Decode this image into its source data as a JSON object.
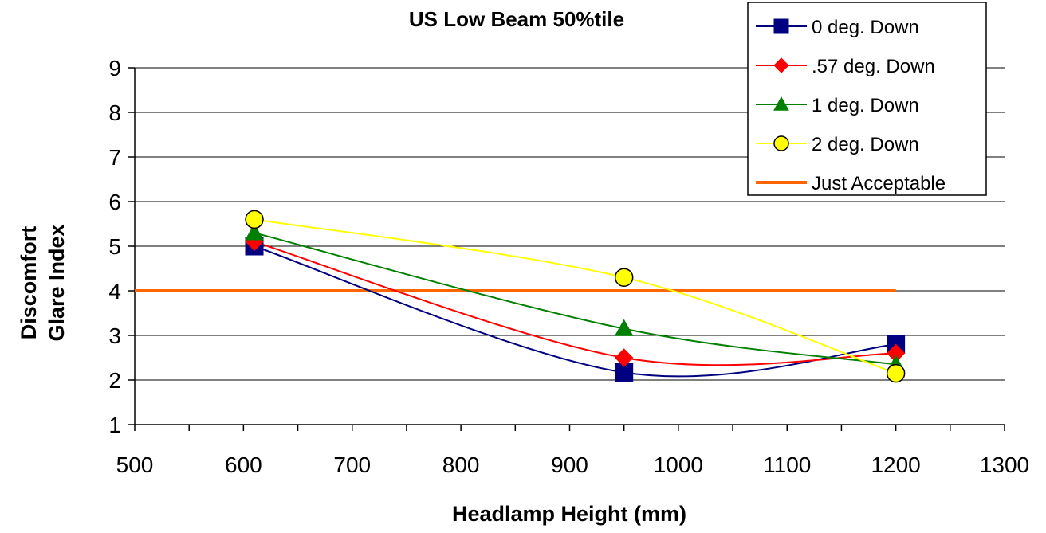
{
  "chart_data": {
    "type": "line",
    "title": "US Low Beam 50%tile",
    "xlabel": "Headlamp Height (mm)",
    "ylabel": [
      "Discomfort",
      "Glare Index"
    ],
    "xlim": [
      500,
      1300
    ],
    "ylim": [
      1,
      9
    ],
    "xticks": [
      500,
      600,
      700,
      800,
      900,
      1000,
      1100,
      1200,
      1300
    ],
    "yticks": [
      1,
      2,
      3,
      4,
      5,
      6,
      7,
      8,
      9
    ],
    "grid": "horizontal",
    "legend_position": "top-right",
    "series": [
      {
        "name": "0 deg. Down",
        "color": "#000080",
        "marker": "square",
        "x": [
          610,
          950,
          1200
        ],
        "y": [
          5.0,
          2.17,
          2.8
        ]
      },
      {
        "name": ".57 deg. Down",
        "color": "#ff0000",
        "marker": "diamond",
        "x": [
          610,
          950,
          1200
        ],
        "y": [
          5.1,
          2.5,
          2.6
        ]
      },
      {
        "name": "1 deg. Down",
        "color": "#008000",
        "marker": "triangle",
        "x": [
          610,
          950,
          1200
        ],
        "y": [
          5.3,
          3.15,
          2.35
        ]
      },
      {
        "name": "2 deg. Down",
        "color": "#ffff00",
        "marker": "circle",
        "x": [
          610,
          950,
          1200
        ],
        "y": [
          5.6,
          4.3,
          2.15
        ]
      },
      {
        "name": "Just Acceptable",
        "color": "#ff6600",
        "marker": "none",
        "x": [
          500,
          1200
        ],
        "y": [
          4,
          4
        ]
      }
    ]
  }
}
